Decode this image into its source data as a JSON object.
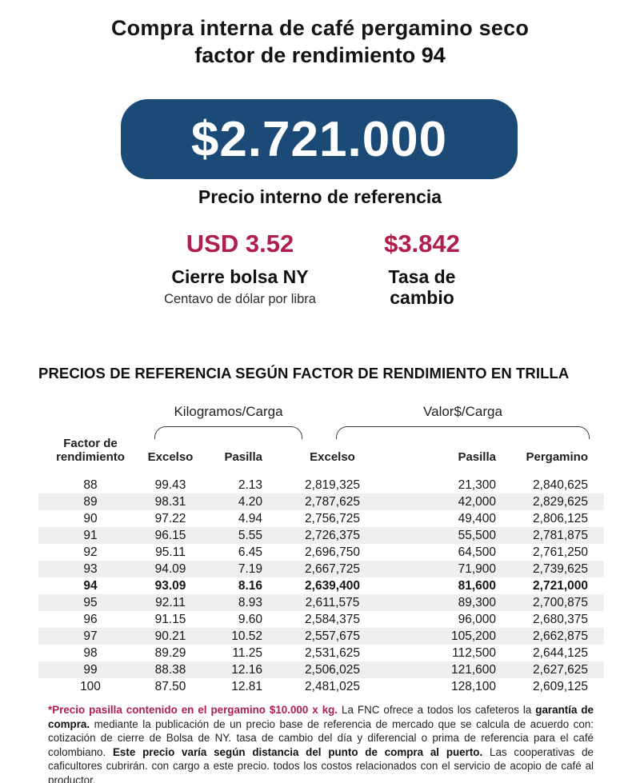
{
  "page": {
    "title_line1": "Compra interna de café pergamino seco",
    "title_line2": "factor de rendimiento 94"
  },
  "banner": {
    "amount": "$2.721.000",
    "caption": "Precio interno de referencia"
  },
  "stats": {
    "ny_close": {
      "value": "USD 3.52",
      "label": "Cierre bolsa NY",
      "sublabel": "Centavo de dólar por libra"
    },
    "exchange_rate": {
      "value": "$3.842",
      "label": "Tasa de cambio"
    }
  },
  "table": {
    "heading": "PRECIOS DE REFERENCIA SEGÚN FACTOR DE RENDIMIENTO EN TRILLA",
    "group_kilograms": "Kilogramos/Carga",
    "group_value": "Valor$/Carga",
    "columns": [
      "Factor de rendimiento",
      "Excelso",
      "Pasilla",
      "Excelso",
      "Pasilla",
      "Pergamino"
    ],
    "highlight_factor": "94",
    "rows": [
      [
        "88",
        "99.43",
        "2.13",
        "2,819,325",
        "21,300",
        "2,840,625"
      ],
      [
        "89",
        "98.31",
        "4.20",
        "2,787,625",
        "42,000",
        "2,829,625"
      ],
      [
        "90",
        "97.22",
        "4.94",
        "2,756,725",
        "49,400",
        "2,806,125"
      ],
      [
        "91",
        "96.15",
        "5.55",
        "2,726,375",
        "55,500",
        "2,781,875"
      ],
      [
        "92",
        "95.11",
        "6.45",
        "2,696,750",
        "64,500",
        "2,761,250"
      ],
      [
        "93",
        "94.09",
        "7.19",
        "2,667,725",
        "71,900",
        "2,739,625"
      ],
      [
        "94",
        "93.09",
        "8.16",
        "2,639,400",
        "81,600",
        "2,721,000"
      ],
      [
        "95",
        "92.11",
        "8.93",
        "2,611,575",
        "89,300",
        "2,700,875"
      ],
      [
        "96",
        "91.15",
        "9.60",
        "2,584,375",
        "96,000",
        "2,680,375"
      ],
      [
        "97",
        "90.21",
        "10.52",
        "2,557,675",
        "105,200",
        "2,662,875"
      ],
      [
        "98",
        "89.29",
        "11.25",
        "2,531,625",
        "112,500",
        "2,644,125"
      ],
      [
        "99",
        "88.38",
        "12.16",
        "2,506,025",
        "121,600",
        "2,627,625"
      ],
      [
        "100",
        "87.50",
        "12.81",
        "2,481,025",
        "128,100",
        "2,609,125"
      ]
    ]
  },
  "footnote": {
    "segments": [
      {
        "style": "crimson",
        "text": "*Precio pasilla contenido en el pergamino $10.000 x kg. "
      },
      {
        "style": "regular",
        "text": "La FNC ofrece a todos los cafeteros la "
      },
      {
        "style": "bold",
        "text": "garantía de compra."
      },
      {
        "style": "regular",
        "text": " mediante la publicación de un precio base de referencia de mercado que se calcula de acuerdo con: cotización de cierre de Bolsa de NY. tasa de cambio del día y diferencial o prima de referencia para el café colombiano. "
      },
      {
        "style": "bold",
        "text": "Este precio varía según distancia del punto de compra al puerto."
      },
      {
        "style": "regular",
        "text": " Las cooperativas de caficultores cubrirán. con cargo a este precio. todos los costos relacionados con el servicio de acopio de café al productor."
      }
    ]
  },
  "colors": {
    "navy": "#1B4A76",
    "crimson": "#B01E4B",
    "stripe": "#EFEFEF"
  }
}
